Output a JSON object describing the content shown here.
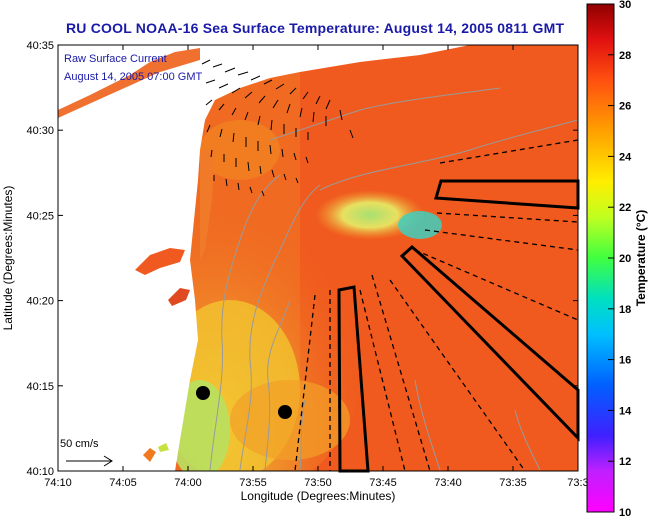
{
  "title": "RU COOL  NOAA-16  Sea Surface Temperature:  August 14, 2005 0811 GMT",
  "legend": {
    "line1": "Raw Surface Current",
    "line2": "August 14, 2005 07:00 GMT",
    "scale_label": "50 cm/s"
  },
  "axes": {
    "xlabel": "Longitude (Degrees:Minutes)",
    "ylabel": "Latitude (Degrees:Minutes)",
    "x_ticks": [
      "74:10",
      "74:05",
      "74:00",
      "73:55",
      "73:50",
      "73:45",
      "73:40",
      "73:35",
      "73:3"
    ],
    "y_ticks": [
      "40:35",
      "40:30",
      "40:25",
      "40:20",
      "40:15",
      "40:10"
    ]
  },
  "colorbar": {
    "label": "Temperature (°C)",
    "ticks": [
      "30",
      "28",
      "26",
      "24",
      "22",
      "20",
      "18",
      "16",
      "14",
      "12",
      "10"
    ],
    "min": 10,
    "max": 30
  },
  "colors": {
    "title": "#1a1aa8",
    "sst_warm": "#f05a1e",
    "sst_cool": "#f0d020",
    "land": "#ffffff"
  }
}
